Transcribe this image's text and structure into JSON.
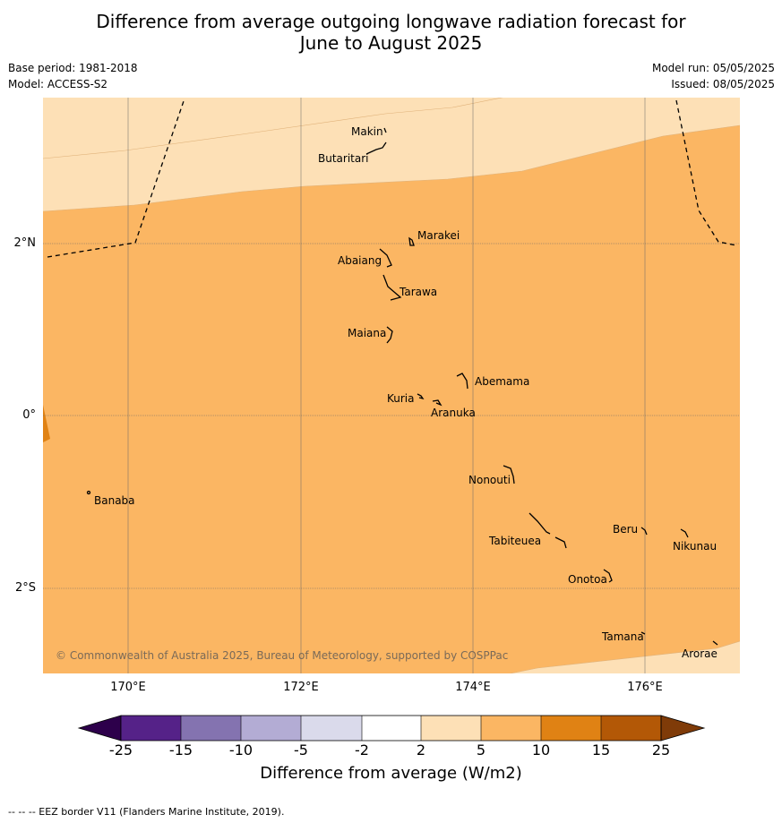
{
  "title_line1": "Difference from average outgoing longwave radiation forecast for",
  "title_line2": "June to August 2025",
  "base_period": "Base period: 1981-2018",
  "model": "Model: ACCESS-S2",
  "model_run": "Model run: 05/05/2025",
  "issued": "Issued: 08/05/2025",
  "lat_labels": [
    "2°N",
    "0°",
    "2°S"
  ],
  "lon_labels": [
    "170°E",
    "172°E",
    "174°E",
    "176°E"
  ],
  "islands": [
    "Makin",
    "Butaritari",
    "Marakei",
    "Abaiang",
    "Tarawa",
    "Maiana",
    "Abemama",
    "Kuria",
    "Aranuka",
    "Nonouti",
    "Banaba",
    "Tabiteuea",
    "Beru",
    "Nikunau",
    "Onotoa",
    "Tamana",
    "Arorae"
  ],
  "copyright": "© Commonwealth of Australia 2025, Bureau of Meteorology, supported by COSPPac",
  "colorbar": {
    "ticks": [
      "-25",
      "-15",
      "-10",
      "-5",
      "-2",
      "2",
      "5",
      "10",
      "15",
      "25"
    ],
    "colors": [
      "#552288",
      "#8473b0",
      "#b3acd4",
      "#dadaeb",
      "#ffffff",
      "#fde0b6",
      "#fbb663",
      "#e08214",
      "#b35806"
    ],
    "under_color": "#2d004b",
    "over_color": "#7f3b08",
    "title": "Difference from average (W/m2)"
  },
  "footnote": "--  --  -- EEZ border V11 (Flanders Marine Institute, 2019)."
}
